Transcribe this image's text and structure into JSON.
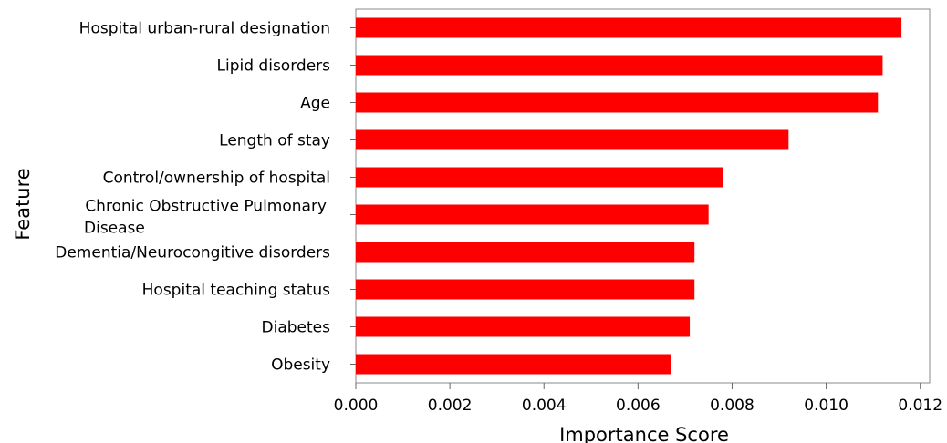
{
  "chart_data": {
    "type": "bar",
    "orientation": "horizontal",
    "categories": [
      [
        "Hospital urban-rural designation"
      ],
      [
        "Lipid disorders"
      ],
      [
        "Age"
      ],
      [
        "Length of stay"
      ],
      [
        "Control/ownership of hospital"
      ],
      [
        "Chronic Obstructive Pulmonary",
        "Disease"
      ],
      [
        "Dementia/Neurocongitive disorders"
      ],
      [
        "Hospital teaching  status"
      ],
      [
        "Diabetes"
      ],
      [
        "Obesity"
      ]
    ],
    "values": [
      0.0116,
      0.0112,
      0.0111,
      0.0092,
      0.0078,
      0.0075,
      0.0072,
      0.0072,
      0.0071,
      0.0067
    ],
    "xlabel": "Importance Score",
    "ylabel": "Feature",
    "xlim": [
      0,
      0.0122
    ],
    "xticks": [
      0,
      0.002,
      0.004,
      0.006,
      0.008,
      0.01,
      0.012
    ],
    "xtick_labels": [
      "0.000",
      "0.002",
      "0.004",
      "0.006",
      "0.008",
      "0.010",
      "0.012"
    ],
    "bar_color": "#ff0000",
    "grid": false,
    "legend": "none"
  }
}
